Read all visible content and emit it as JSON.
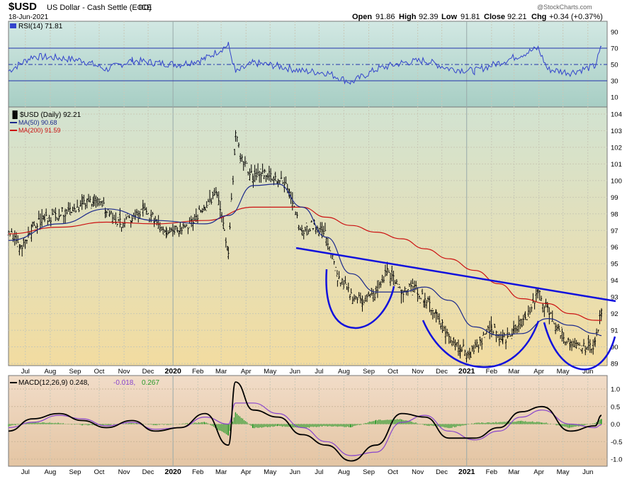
{
  "header": {
    "symbol": "$USD",
    "name": "US Dollar - Cash Settle (EOD)",
    "exchange": "ICE",
    "date": "18-Jun-2021",
    "watermark": "@StockCharts.com",
    "open_label": "Open",
    "open": "91.86",
    "high_label": "High",
    "high": "92.39",
    "low_label": "Low",
    "low": "91.81",
    "close_label": "Close",
    "close": "92.21",
    "chg_label": "Chg",
    "chg": "+0.34 (+0.37%)"
  },
  "legend": {
    "rsi": "RSI(14) 71.81",
    "price": "$USD (Daily) 92.21",
    "ma50": "MA(50) 90.68",
    "ma200": "MA(200) 91.59",
    "macd_main": "MACD(12,26,9) 0.248,",
    "macd_signal": "-0.018,",
    "macd_hist": "0.267"
  },
  "colors": {
    "price": "#000000",
    "ma50": "#1c2a8c",
    "ma200": "#cc1111",
    "rsi": "#3344cc",
    "trendline": "#1111dd",
    "macd": "#000000",
    "macd_signal": "#8844cc",
    "macd_hist": "#2a9a2a",
    "rsi_bg_top": "#cfe5e0",
    "rsi_bg_bottom": "#a9cfc6",
    "price_bg_top": "#d3e3d0",
    "price_bg_bottom": "#f0dca0",
    "macd_bg_top": "#efd8c2",
    "macd_bg_bottom": "#e6c8a6"
  },
  "chart_data": [
    {
      "type": "line",
      "panel": "RSI",
      "series_name": "RSI(14)",
      "ylim": [
        10,
        90
      ],
      "y_ticks": [
        "90",
        "70",
        "50",
        "30",
        "10"
      ],
      "reference_lines": [
        70,
        50,
        30
      ],
      "x": [
        "2019-06-10",
        "2019-07-10",
        "2019-08-12",
        "2019-09-10",
        "2019-10-10",
        "2019-11-11",
        "2019-12-10",
        "2020-01-10",
        "2020-02-10",
        "2020-03-10",
        "2020-03-19",
        "2020-04-10",
        "2020-05-11",
        "2020-06-10",
        "2020-07-10",
        "2020-08-10",
        "2020-09-10",
        "2020-10-12",
        "2020-11-10",
        "2020-12-10",
        "2021-01-11",
        "2021-02-10",
        "2021-03-10",
        "2021-03-31",
        "2021-04-12",
        "2021-05-10",
        "2021-06-10",
        "2021-06-18"
      ],
      "values": [
        42,
        60,
        58,
        55,
        44,
        55,
        52,
        50,
        57,
        74,
        40,
        52,
        48,
        42,
        40,
        28,
        44,
        52,
        55,
        45,
        42,
        52,
        62,
        70,
        44,
        40,
        48,
        71.81
      ]
    },
    {
      "type": "line",
      "panel": "Price",
      "title": "$USD US Dollar - Cash Settle (EOD) ICE",
      "ylim": [
        89,
        104
      ],
      "y_ticks": [
        "104",
        "103",
        "102",
        "101",
        "100",
        "99",
        "98",
        "97",
        "96",
        "95",
        "94",
        "93",
        "92",
        "91",
        "90",
        "89"
      ],
      "x_ticks": [
        "Jul",
        "Aug",
        "Sep",
        "Oct",
        "Nov",
        "Dec",
        "2020",
        "Feb",
        "Mar",
        "Apr",
        "May",
        "Jun",
        "Jul",
        "Aug",
        "Sep",
        "Oct",
        "Nov",
        "Dec",
        "2021",
        "Feb",
        "Mar",
        "Apr",
        "May",
        "Jun"
      ],
      "series": [
        {
          "name": "$USD (Daily) 92.21",
          "x": [
            "2019-06-10",
            "2019-06-25",
            "2019-07-10",
            "2019-07-25",
            "2019-08-12",
            "2019-08-27",
            "2019-09-10",
            "2019-09-25",
            "2019-10-10",
            "2019-10-25",
            "2019-11-11",
            "2019-11-25",
            "2019-12-10",
            "2019-12-24",
            "2020-01-10",
            "2020-01-24",
            "2020-02-10",
            "2020-02-25",
            "2020-03-05",
            "2020-03-10",
            "2020-03-19",
            "2020-03-25",
            "2020-04-10",
            "2020-04-24",
            "2020-05-11",
            "2020-05-25",
            "2020-06-10",
            "2020-06-25",
            "2020-07-10",
            "2020-07-24",
            "2020-08-10",
            "2020-08-24",
            "2020-09-10",
            "2020-09-24",
            "2020-10-12",
            "2020-10-26",
            "2020-11-10",
            "2020-11-24",
            "2020-12-10",
            "2020-12-24",
            "2021-01-06",
            "2021-01-18",
            "2021-02-01",
            "2021-02-15",
            "2021-03-01",
            "2021-03-15",
            "2021-03-31",
            "2021-04-12",
            "2021-04-26",
            "2021-05-10",
            "2021-05-25",
            "2021-06-10",
            "2021-06-18"
          ],
          "values": [
            97.0,
            96.0,
            97.2,
            97.7,
            98.0,
            98.3,
            98.5,
            98.9,
            98.3,
            97.4,
            97.7,
            98.2,
            97.6,
            97.0,
            97.2,
            97.4,
            98.5,
            99.2,
            96.9,
            95.5,
            102.8,
            101.4,
            100.2,
            100.5,
            100.1,
            99.5,
            96.8,
            97.4,
            96.7,
            94.2,
            93.1,
            92.8,
            93.2,
            94.6,
            93.3,
            93.6,
            92.9,
            92.0,
            90.6,
            90.0,
            89.5,
            90.3,
            91.2,
            90.4,
            91.0,
            91.7,
            93.3,
            92.2,
            91.0,
            90.1,
            89.9,
            90.2,
            92.21
          ]
        },
        {
          "name": "MA(50) 90.68",
          "x": [
            "2019-06-10",
            "2019-08-12",
            "2019-10-10",
            "2019-12-10",
            "2020-02-10",
            "2020-03-10",
            "2020-04-10",
            "2020-05-11",
            "2020-06-10",
            "2020-07-10",
            "2020-08-10",
            "2020-09-10",
            "2020-10-12",
            "2020-11-10",
            "2020-12-10",
            "2021-01-11",
            "2021-02-10",
            "2021-03-10",
            "2021-04-12",
            "2021-05-10",
            "2021-06-10",
            "2021-06-18"
          ],
          "values": [
            96.4,
            97.4,
            98.3,
            97.6,
            97.4,
            97.9,
            99.7,
            99.8,
            98.4,
            96.6,
            94.4,
            93.3,
            93.3,
            93.6,
            92.8,
            91.2,
            90.7,
            90.8,
            91.7,
            91.3,
            90.8,
            90.68
          ]
        },
        {
          "name": "MA(200) 91.59",
          "x": [
            "2019-06-10",
            "2019-08-12",
            "2019-10-10",
            "2019-12-10",
            "2020-02-10",
            "2020-04-10",
            "2020-06-10",
            "2020-07-10",
            "2020-08-10",
            "2020-09-10",
            "2020-10-12",
            "2020-11-10",
            "2020-12-10",
            "2021-01-11",
            "2021-02-10",
            "2021-03-10",
            "2021-04-12",
            "2021-05-10",
            "2021-06-10",
            "2021-06-18"
          ],
          "values": [
            96.8,
            97.2,
            97.5,
            97.4,
            97.6,
            98.4,
            98.4,
            97.8,
            97.3,
            96.9,
            96.5,
            95.9,
            95.3,
            94.6,
            93.8,
            92.9,
            92.6,
            92.0,
            91.6,
            91.59
          ]
        }
      ]
    },
    {
      "type": "line",
      "panel": "MACD",
      "ylim": [
        -1.0,
        1.0
      ],
      "y_ticks": [
        "1.0",
        "0.5",
        "0.0",
        "-0.5",
        "-1.0"
      ],
      "x": [
        "2019-06-10",
        "2019-07-10",
        "2019-08-12",
        "2019-09-10",
        "2019-10-10",
        "2019-11-11",
        "2019-12-10",
        "2020-01-10",
        "2020-02-10",
        "2020-03-10",
        "2020-03-19",
        "2020-04-10",
        "2020-05-11",
        "2020-06-10",
        "2020-07-10",
        "2020-08-10",
        "2020-09-10",
        "2020-10-12",
        "2020-11-10",
        "2020-12-10",
        "2021-01-11",
        "2021-02-10",
        "2021-03-10",
        "2021-04-05",
        "2021-05-10",
        "2021-06-10",
        "2021-06-18"
      ],
      "series": [
        {
          "name": "MACD(12,26,9) 0.248",
          "values": [
            -0.2,
            0.15,
            0.3,
            0.1,
            -0.1,
            0.1,
            -0.2,
            -0.1,
            0.3,
            -0.6,
            1.2,
            0.4,
            0.2,
            -0.3,
            -0.6,
            -1.05,
            -0.6,
            0.3,
            0.2,
            -0.4,
            -0.4,
            -0.1,
            0.35,
            0.5,
            -0.2,
            -0.05,
            0.248
          ]
        },
        {
          "name": "-0.018",
          "values": [
            -0.1,
            0.05,
            0.25,
            0.15,
            -0.05,
            0.05,
            -0.15,
            -0.1,
            0.2,
            0.0,
            0.6,
            0.6,
            0.3,
            -0.1,
            -0.5,
            -0.9,
            -0.8,
            0.05,
            0.25,
            -0.2,
            -0.45,
            -0.2,
            0.2,
            0.4,
            0.0,
            -0.1,
            -0.018
          ]
        },
        {
          "name": "0.267",
          "type": "bar",
          "values": [
            -0.1,
            0.1,
            0.05,
            -0.05,
            -0.05,
            0.05,
            -0.05,
            0.0,
            0.1,
            -0.6,
            0.6,
            -0.2,
            -0.1,
            -0.2,
            -0.1,
            -0.15,
            0.2,
            0.25,
            -0.05,
            -0.2,
            0.05,
            0.1,
            0.15,
            0.1,
            -0.2,
            0.05,
            0.267
          ]
        }
      ]
    }
  ]
}
